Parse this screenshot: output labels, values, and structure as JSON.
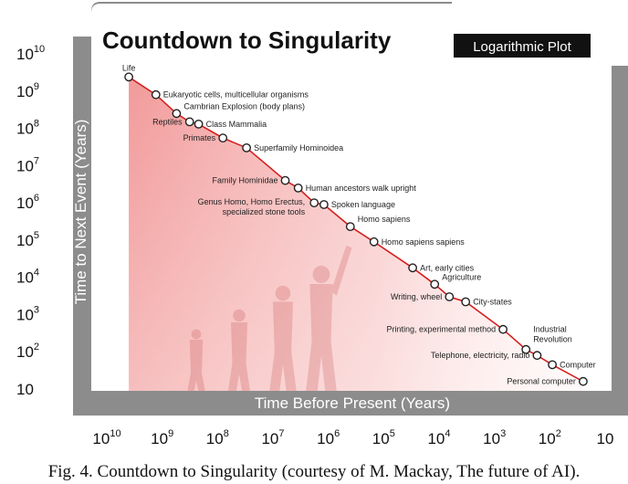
{
  "figure": {
    "title": "Countdown to Singularity",
    "badge": "Logarithmic Plot",
    "ylabel": "Time to Next Event (Years)",
    "xlabel": "Time Before Present (Years)",
    "caption": "Fig. 4. Countdown to Singularity (courtesy of M. Mackay, The future of AI)."
  },
  "colors": {
    "panel_gray": "#8c8c8c",
    "line_red": "#d42020",
    "fill_red": "#f6a8a8",
    "marker_fill": "#ffffff",
    "marker_stroke": "#222222",
    "title_text": "#111111",
    "badge_bg": "#111111",
    "badge_text": "#ffffff"
  },
  "chart_data": {
    "type": "scatter",
    "title": "Countdown to Singularity",
    "subtitle": "Logarithmic Plot",
    "xlabel": "Time Before Present (Years)",
    "ylabel": "Time to Next Event (Years)",
    "x_scale": "log",
    "y_scale": "log",
    "x_reversed": true,
    "xlim": [
      10000000000,
      10
    ],
    "ylim": [
      10,
      10000000000
    ],
    "x_ticks": [
      {
        "base": "10",
        "exp": "10"
      },
      {
        "base": "10",
        "exp": "9"
      },
      {
        "base": "10",
        "exp": "8"
      },
      {
        "base": "10",
        "exp": "7"
      },
      {
        "base": "10",
        "exp": "6"
      },
      {
        "base": "10",
        "exp": "5"
      },
      {
        "base": "10",
        "exp": "4"
      },
      {
        "base": "10",
        "exp": "3"
      },
      {
        "base": "10",
        "exp": "2"
      },
      {
        "base": "10",
        "exp": ""
      }
    ],
    "y_ticks": [
      {
        "base": "10",
        "exp": "10"
      },
      {
        "base": "10",
        "exp": "9"
      },
      {
        "base": "10",
        "exp": "8"
      },
      {
        "base": "10",
        "exp": "7"
      },
      {
        "base": "10",
        "exp": "6"
      },
      {
        "base": "10",
        "exp": "5"
      },
      {
        "base": "10",
        "exp": "4"
      },
      {
        "base": "10",
        "exp": "3"
      },
      {
        "base": "10",
        "exp": "2"
      },
      {
        "base": "10",
        "exp": ""
      }
    ],
    "grid": false,
    "trend_line": true,
    "shaded_area_under_line": true,
    "points": [
      {
        "label": "Life",
        "x": 4000000000,
        "y": 2400000000,
        "label_pos": "above"
      },
      {
        "label": "Eukaryotic cells, multicellular organisms",
        "x": 1300000000,
        "y": 800000000,
        "label_pos": "right"
      },
      {
        "label": "Cambrian Explosion (body plans)",
        "x": 550000000,
        "y": 250000000,
        "label_pos": "right-up"
      },
      {
        "label": "Reptiles",
        "x": 320000000,
        "y": 150000000,
        "label_pos": "left"
      },
      {
        "label": "Class Mammalia",
        "x": 220000000,
        "y": 130000000,
        "label_pos": "right"
      },
      {
        "label": "Primates",
        "x": 80000000,
        "y": 55000000,
        "label_pos": "left"
      },
      {
        "label": "Superfamily Hominoidea",
        "x": 30000000,
        "y": 30000000,
        "label_pos": "right"
      },
      {
        "label": "Family Hominidae",
        "x": 6000000,
        "y": 4000000,
        "label_pos": "left"
      },
      {
        "label": "Human ancestors walk upright",
        "x": 3500000,
        "y": 2500000,
        "label_pos": "right"
      },
      {
        "label": "Genus Homo, Homo Erectus, specialized stone tools",
        "x": 1800000,
        "y": 1000000,
        "label_pos": "left-multiline"
      },
      {
        "label": "Spoken language",
        "x": 1200000,
        "y": 900000,
        "label_pos": "right"
      },
      {
        "label": "Homo sapiens",
        "x": 400000,
        "y": 230000,
        "label_pos": "right-up"
      },
      {
        "label": "Homo sapiens sapiens",
        "x": 150000,
        "y": 90000,
        "label_pos": "right"
      },
      {
        "label": "Art, early cities",
        "x": 30000,
        "y": 18000,
        "label_pos": "right"
      },
      {
        "label": "Agriculture",
        "x": 12000,
        "y": 6500,
        "label_pos": "right-up"
      },
      {
        "label": "Writing, wheel",
        "x": 6500,
        "y": 3000,
        "label_pos": "left"
      },
      {
        "label": "City-states",
        "x": 3300,
        "y": 2200,
        "label_pos": "right"
      },
      {
        "label": "Printing, experimental method",
        "x": 700,
        "y": 400,
        "label_pos": "left"
      },
      {
        "label": "Industrial Revolution",
        "x": 270,
        "y": 115,
        "label_pos": "right-multiline"
      },
      {
        "label": "Telephone,  electricity, radio",
        "x": 170,
        "y": 80,
        "label_pos": "left"
      },
      {
        "label": "Computer",
        "x": 90,
        "y": 45,
        "label_pos": "right"
      },
      {
        "label": "Personal computer",
        "x": 25,
        "y": 16,
        "label_pos": "left"
      }
    ]
  }
}
